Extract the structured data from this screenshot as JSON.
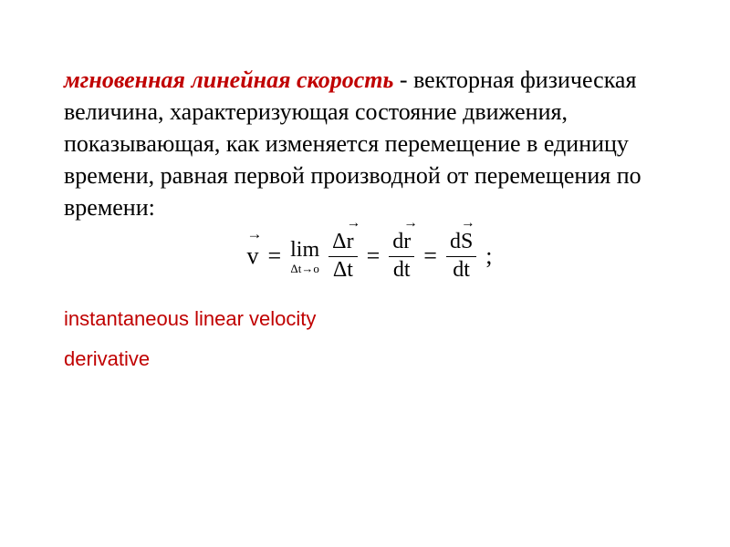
{
  "colors": {
    "term": "#c00000",
    "text": "#000000",
    "annotation": "#c00000",
    "background": "#ffffff"
  },
  "typography": {
    "body_family": "Times New Roman",
    "body_size_pt": 20,
    "annotation_family": "Arial",
    "annotation_size_pt": 16
  },
  "definition": {
    "term": "мгновенная линейная скорость",
    "sep": " - ",
    "body": "векторная физическая величина, характеризующая состояние движения, показывающая, как из­меняется перемещение в единицу времени, равная первой производной от перемещения по времени:"
  },
  "formula": {
    "lhs": {
      "vec": "v"
    },
    "eq": "=",
    "lim_label": "lim",
    "lim_sub": "Δt→o",
    "frac1": {
      "num_vec": "Δr",
      "num_vec_base": "r",
      "num_prefix": "Δ",
      "den": "Δt"
    },
    "frac2": {
      "num_vec": "dr",
      "num_vec_base": "r",
      "num_prefix": "d",
      "den": "dt"
    },
    "frac3": {
      "num_vec": "dS",
      "num_vec_base": "S",
      "num_prefix": "d",
      "den": "dt"
    },
    "tail": ";"
  },
  "annotations": {
    "line1": "instantaneous linear velocity",
    "line2": "derivative"
  }
}
